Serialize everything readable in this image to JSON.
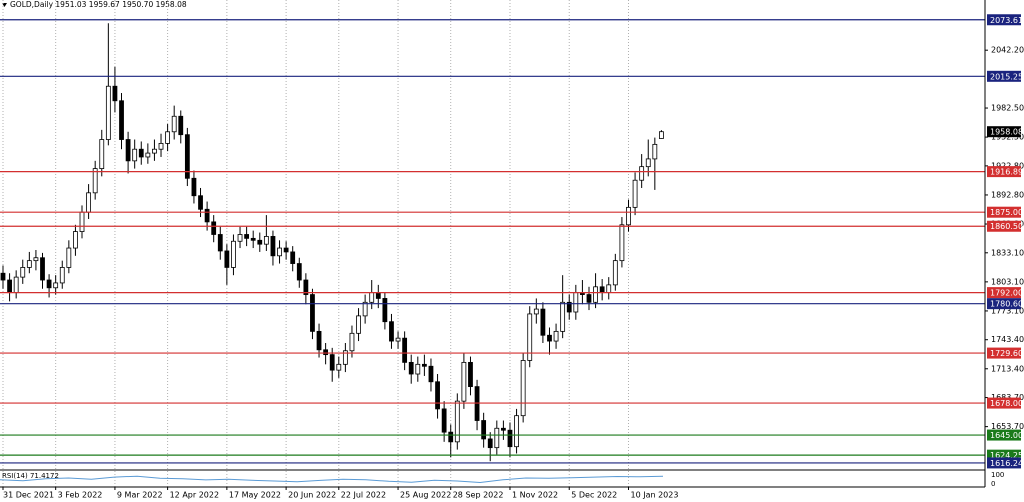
{
  "header": {
    "title": "GOLD,Daily  1951.03 1959.67 1950.70 1958.08"
  },
  "chart_data": {
    "type": "candlestick",
    "open": [
      1812,
      1805,
      1792,
      1808,
      1818,
      1825,
      1828,
      1805,
      1797,
      1802,
      1818,
      1838,
      1855,
      1875,
      1895,
      1920,
      1950,
      2005,
      1990,
      1950,
      1928,
      1940,
      1932,
      1936,
      1940,
      1946,
      1958,
      1974,
      1955,
      1910,
      1892,
      1878,
      1865,
      1852,
      1835,
      1818,
      1845,
      1852,
      1848,
      1846,
      1842,
      1850,
      1830,
      1838,
      1834,
      1822,
      1805,
      1790,
      1752,
      1733,
      1728,
      1712,
      1718,
      1732,
      1750,
      1768,
      1782,
      1792,
      1786,
      1762,
      1742,
      1745,
      1720,
      1708,
      1718,
      1716,
      1700,
      1672,
      1648,
      1638,
      1680,
      1720,
      1695,
      1660,
      1641,
      1632,
      1652,
      1650,
      1633,
      1665,
      1722,
      1770,
      1775,
      1748,
      1742,
      1752,
      1782,
      1772,
      1792,
      1790,
      1782,
      1798,
      1792,
      1800,
      1825,
      1862,
      1880,
      1908,
      1922,
      1930,
      1951.03
    ],
    "high": [
      1820,
      1812,
      1815,
      1826,
      1834,
      1836,
      1833,
      1811,
      1810,
      1825,
      1846,
      1862,
      1882,
      1904,
      1928,
      1960,
      2070,
      2025,
      1998,
      1958,
      1950,
      1948,
      1946,
      1950,
      1956,
      1966,
      1985,
      1980,
      1962,
      1918,
      1900,
      1886,
      1872,
      1860,
      1842,
      1852,
      1860,
      1860,
      1856,
      1854,
      1872,
      1856,
      1846,
      1845,
      1840,
      1828,
      1812,
      1796,
      1760,
      1740,
      1735,
      1726,
      1740,
      1758,
      1776,
      1790,
      1805,
      1800,
      1792,
      1770,
      1752,
      1752,
      1728,
      1726,
      1728,
      1724,
      1708,
      1680,
      1656,
      1688,
      1730,
      1726,
      1702,
      1668,
      1648,
      1660,
      1660,
      1658,
      1672,
      1730,
      1778,
      1786,
      1782,
      1756,
      1760,
      1810,
      1790,
      1800,
      1805,
      1798,
      1812,
      1806,
      1808,
      1832,
      1870,
      1888,
      1916,
      1935,
      1950,
      1952,
      1959.67
    ],
    "low": [
      1796,
      1783,
      1786,
      1801,
      1812,
      1815,
      1796,
      1787,
      1790,
      1796,
      1812,
      1830,
      1848,
      1868,
      1888,
      1912,
      1944,
      1978,
      1940,
      1915,
      1920,
      1924,
      1925,
      1928,
      1932,
      1938,
      1950,
      1946,
      1902,
      1884,
      1870,
      1856,
      1844,
      1826,
      1800,
      1810,
      1838,
      1840,
      1838,
      1834,
      1835,
      1820,
      1822,
      1826,
      1814,
      1797,
      1780,
      1744,
      1725,
      1718,
      1700,
      1704,
      1710,
      1725,
      1742,
      1760,
      1775,
      1776,
      1754,
      1734,
      1734,
      1712,
      1698,
      1700,
      1706,
      1690,
      1662,
      1638,
      1622,
      1630,
      1672,
      1686,
      1650,
      1632,
      1618,
      1625,
      1640,
      1622,
      1626,
      1658,
      1715,
      1760,
      1740,
      1728,
      1734,
      1745,
      1764,
      1764,
      1780,
      1774,
      1776,
      1784,
      1785,
      1794,
      1818,
      1855,
      1872,
      1900,
      1912,
      1898,
      1950.7
    ],
    "close": [
      1805,
      1792,
      1808,
      1818,
      1825,
      1828,
      1805,
      1797,
      1802,
      1818,
      1838,
      1855,
      1875,
      1895,
      1920,
      1950,
      2005,
      1990,
      1950,
      1928,
      1940,
      1932,
      1936,
      1940,
      1946,
      1958,
      1974,
      1955,
      1910,
      1892,
      1878,
      1865,
      1852,
      1835,
      1818,
      1845,
      1852,
      1848,
      1846,
      1842,
      1850,
      1830,
      1838,
      1834,
      1822,
      1805,
      1790,
      1752,
      1733,
      1728,
      1712,
      1718,
      1732,
      1750,
      1768,
      1782,
      1792,
      1786,
      1762,
      1742,
      1745,
      1720,
      1708,
      1718,
      1716,
      1700,
      1672,
      1648,
      1638,
      1680,
      1720,
      1695,
      1660,
      1641,
      1632,
      1652,
      1650,
      1633,
      1665,
      1722,
      1770,
      1775,
      1748,
      1742,
      1752,
      1782,
      1772,
      1792,
      1790,
      1782,
      1798,
      1792,
      1800,
      1825,
      1862,
      1880,
      1908,
      1922,
      1930,
      1945,
      1958.08
    ],
    "xticks": [
      {
        "value": 0,
        "label": "31 Dec 2021"
      },
      {
        "value": 8,
        "label": "3 Feb 2022"
      },
      {
        "value": 17,
        "label": "9 Mar 2022"
      },
      {
        "value": 25,
        "label": "12 Apr 2022"
      },
      {
        "value": 34,
        "label": "17 May 2022"
      },
      {
        "value": 43,
        "label": "20 Jun 2022"
      },
      {
        "value": 51,
        "label": "22 Jul 2022"
      },
      {
        "value": 60,
        "label": "25 Aug 2022"
      },
      {
        "value": 68,
        "label": "28 Sep 2022"
      },
      {
        "value": 77,
        "label": "1 Nov 2022"
      },
      {
        "value": 86,
        "label": "5 Dec 2022"
      },
      {
        "value": 95,
        "label": "10 Jan 2023"
      }
    ],
    "ylim": [
      1611,
      2094
    ],
    "yticks": [
      {
        "value": 2042.2,
        "label": "2042.20"
      },
      {
        "value": 1982.5,
        "label": "1982.50"
      },
      {
        "value": 1952.5,
        "label": "1952.50"
      },
      {
        "value": 1922.8,
        "label": "1922.80"
      },
      {
        "value": 1892.8,
        "label": "1892.80"
      },
      {
        "value": 1862.8,
        "label": "1862.80"
      },
      {
        "value": 1833.1,
        "label": "1833.10"
      },
      {
        "value": 1803.1,
        "label": "1803.10"
      },
      {
        "value": 1773.1,
        "label": "1773.10"
      },
      {
        "value": 1743.4,
        "label": "1743.40"
      },
      {
        "value": 1713.4,
        "label": "1713.40"
      },
      {
        "value": 1683.7,
        "label": "1683.70"
      },
      {
        "value": 1653.7,
        "label": "1653.70"
      }
    ],
    "levels": [
      {
        "value": 2073.61,
        "label": "2073.61",
        "color": "#1a237e"
      },
      {
        "value": 2015.25,
        "label": "2015.25",
        "color": "#1a237e"
      },
      {
        "value": 1916.89,
        "label": "1916.89",
        "color": "#d32f2f"
      },
      {
        "value": 1875,
        "label": "1875.00",
        "color": "#d32f2f"
      },
      {
        "value": 1860.5,
        "label": "1860.50",
        "color": "#d32f2f"
      },
      {
        "value": 1792,
        "label": "1792.00",
        "color": "#d32f2f"
      },
      {
        "value": 1780.6,
        "label": "1780.60",
        "color": "#1a237e"
      },
      {
        "value": 1729.6,
        "label": "1729.60",
        "color": "#d32f2f"
      },
      {
        "value": 1678,
        "label": "1678.00",
        "color": "#d32f2f"
      },
      {
        "value": 1645,
        "label": "1645.00",
        "color": "#1b7a1b"
      },
      {
        "value": 1624.25,
        "label": "1624.25",
        "color": "#1b7a1b"
      },
      {
        "value": 1616.24,
        "label": "1616.24",
        "color": "#1a237e"
      }
    ],
    "rsi": {
      "label": "RSI(14) 71.4172",
      "color": "#5b9bd5",
      "ylim": [
        0,
        100
      ],
      "yticks": [
        100,
        0
      ],
      "values": [
        48,
        42,
        55,
        60,
        52,
        66,
        72,
        58,
        55,
        47,
        52,
        45,
        40,
        35,
        44,
        52,
        48,
        38,
        32,
        45,
        40,
        30,
        48,
        60,
        58,
        62,
        66,
        70,
        68,
        71.4172
      ]
    }
  }
}
